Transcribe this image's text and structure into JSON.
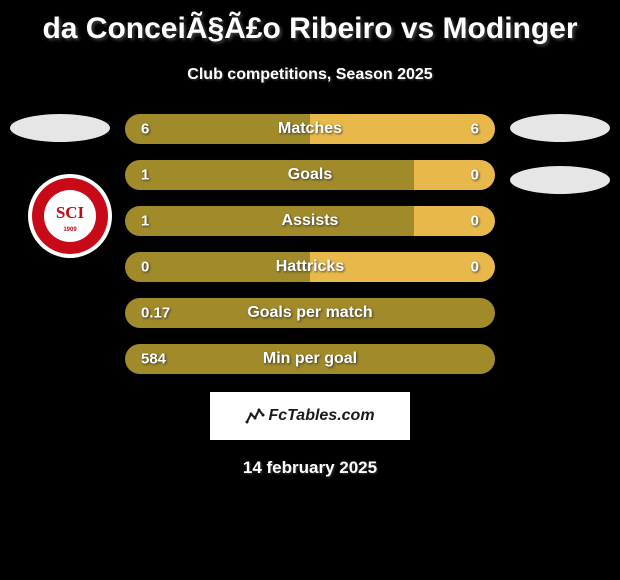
{
  "title": "da ConceiÃ§Ã£o Ribeiro vs Modinger",
  "subtitle": "Club competitions, Season 2025",
  "date": "14 february 2025",
  "branding": "FcTables.com",
  "colors": {
    "player1_bar": "#a08a2a",
    "player2_bar": "#e8b94a",
    "badge_ellipse": "#e6e6e6",
    "background": "#000000",
    "text": "#ffffff",
    "row_background": "#1a1a1a",
    "branding_bg": "#ffffff"
  },
  "club_badge": {
    "outer": "#ffffff",
    "ring": "#c80a18",
    "inner": "#ffffff",
    "text": "#c80a18"
  },
  "stats": [
    {
      "label": "Matches",
      "left_val": "6",
      "right_val": "6",
      "left_pct": 50,
      "right_pct": 50
    },
    {
      "label": "Goals",
      "left_val": "1",
      "right_val": "0",
      "left_pct": 78,
      "right_pct": 22
    },
    {
      "label": "Assists",
      "left_val": "1",
      "right_val": "0",
      "left_pct": 78,
      "right_pct": 22
    },
    {
      "label": "Hattricks",
      "left_val": "0",
      "right_val": "0",
      "left_pct": 50,
      "right_pct": 50
    },
    {
      "label": "Goals per match",
      "left_val": "0.17",
      "right_val": "",
      "left_pct": 100,
      "right_pct": 0
    },
    {
      "label": "Min per goal",
      "left_val": "584",
      "right_val": "",
      "left_pct": 100,
      "right_pct": 0
    }
  ],
  "layout": {
    "stat_bar_width": 370,
    "stat_bar_height": 30,
    "stat_bar_gap": 16,
    "stat_bar_radius": 15
  }
}
